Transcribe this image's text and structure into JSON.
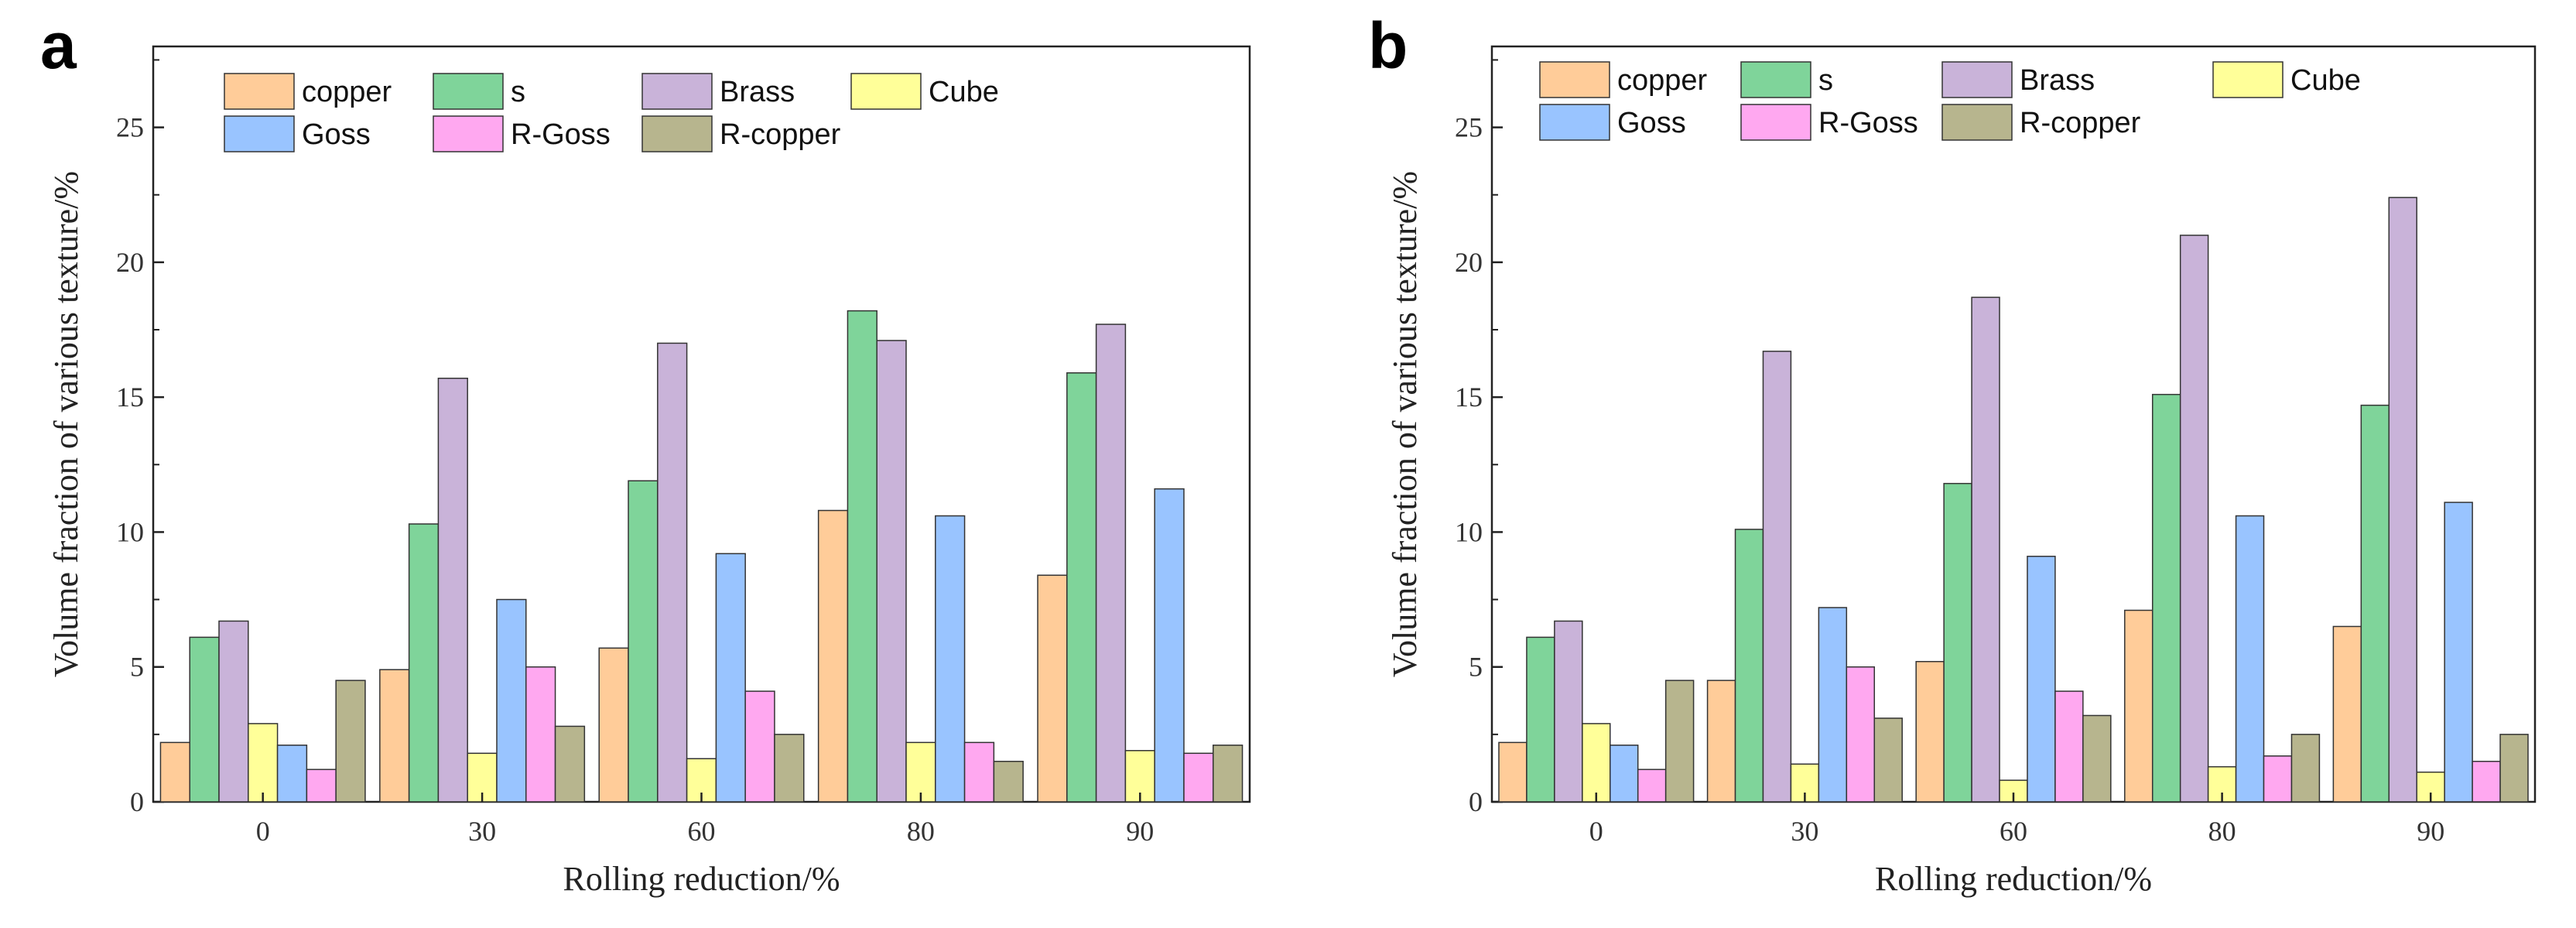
{
  "chart_data": [
    {
      "panel": "a",
      "type": "bar",
      "categories": [
        "0",
        "30",
        "60",
        "80",
        "90"
      ],
      "xlabel": "Rolling reduction/%",
      "ylabel": "Volume fraction of various texture/%",
      "ylim": [
        0,
        28
      ],
      "yticks": [
        "0",
        "5",
        "10",
        "15",
        "20",
        "25"
      ],
      "grid": false,
      "legend_position": "top-left",
      "series": [
        {
          "name": "copper",
          "color": "#FFCC99",
          "values": [
            2.2,
            4.9,
            5.7,
            10.8,
            8.4
          ]
        },
        {
          "name": "s",
          "color": "#7FD49A",
          "values": [
            6.1,
            10.3,
            11.9,
            18.2,
            15.9
          ]
        },
        {
          "name": "Brass",
          "color": "#C9B3D9",
          "values": [
            6.7,
            15.7,
            17.0,
            17.1,
            17.7
          ]
        },
        {
          "name": "Cube",
          "color": "#FFFF99",
          "values": [
            2.9,
            1.8,
            1.6,
            2.2,
            1.9
          ]
        },
        {
          "name": "Goss",
          "color": "#99C4FF",
          "values": [
            2.1,
            7.5,
            9.2,
            10.6,
            11.6
          ]
        },
        {
          "name": "R-Goss",
          "color": "#FFA8F0",
          "values": [
            1.2,
            5.0,
            4.1,
            2.2,
            1.8
          ]
        },
        {
          "name": "R-copper",
          "color": "#B7B58E",
          "values": [
            4.5,
            2.8,
            2.5,
            1.5,
            2.1
          ]
        }
      ]
    },
    {
      "panel": "b",
      "type": "bar",
      "categories": [
        "0",
        "30",
        "60",
        "80",
        "90"
      ],
      "xlabel": "Rolling reduction/%",
      "ylabel": "Volume fraction of various texture/%",
      "ylim": [
        0,
        28
      ],
      "yticks": [
        "0",
        "5",
        "10",
        "15",
        "20",
        "25"
      ],
      "grid": false,
      "legend_position": "top-left",
      "series": [
        {
          "name": "copper",
          "color": "#FFCC99",
          "values": [
            2.2,
            4.5,
            5.2,
            7.1,
            6.5
          ]
        },
        {
          "name": "s",
          "color": "#7FD49A",
          "values": [
            6.1,
            10.1,
            11.8,
            15.1,
            14.7
          ]
        },
        {
          "name": "Brass",
          "color": "#C9B3D9",
          "values": [
            6.7,
            16.7,
            18.7,
            21.0,
            22.4
          ]
        },
        {
          "name": "Cube",
          "color": "#FFFF99",
          "values": [
            2.9,
            1.4,
            0.8,
            1.3,
            1.1
          ]
        },
        {
          "name": "Goss",
          "color": "#99C4FF",
          "values": [
            2.1,
            7.2,
            9.1,
            10.6,
            11.1
          ]
        },
        {
          "name": "R-Goss",
          "color": "#FFA8F0",
          "values": [
            1.2,
            5.0,
            4.1,
            1.7,
            1.5
          ]
        },
        {
          "name": "R-copper",
          "color": "#B7B58E",
          "values": [
            4.5,
            3.1,
            3.2,
            2.5,
            2.5
          ]
        }
      ]
    }
  ]
}
